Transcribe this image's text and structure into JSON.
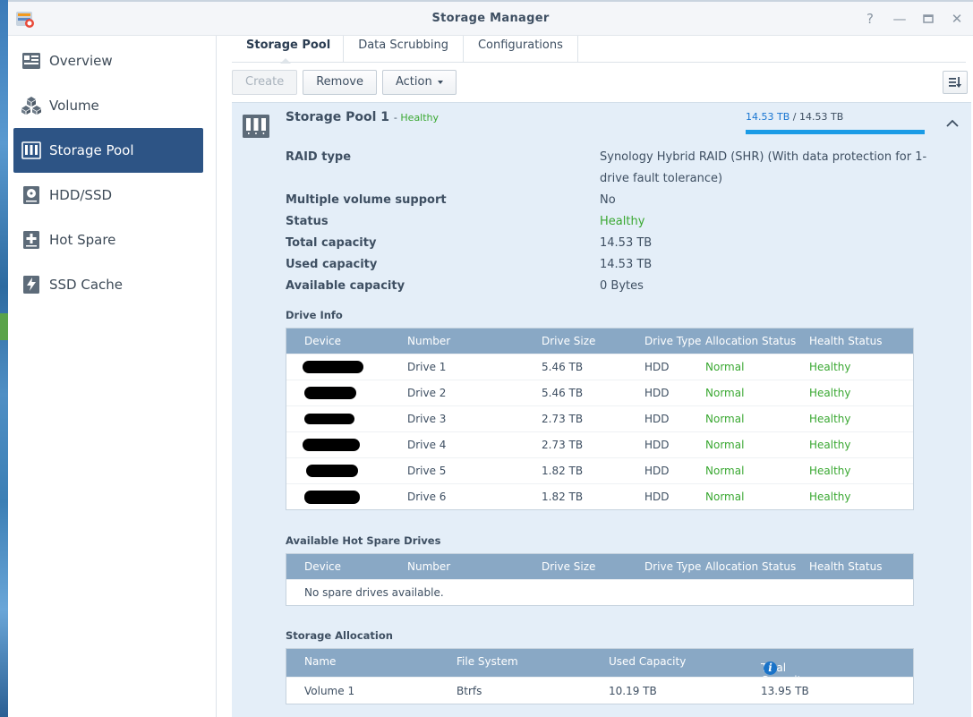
{
  "window": {
    "title": "Storage Manager"
  },
  "sidebar": {
    "items": [
      {
        "label": "Overview",
        "icon": "overview-icon"
      },
      {
        "label": "Volume",
        "icon": "volume-icon"
      },
      {
        "label": "Storage Pool",
        "icon": "storage-pool-icon",
        "active": true
      },
      {
        "label": "HDD/SSD",
        "icon": "hdd-icon"
      },
      {
        "label": "Hot Spare",
        "icon": "hot-spare-icon"
      },
      {
        "label": "SSD Cache",
        "icon": "ssd-cache-icon"
      }
    ]
  },
  "tabs": [
    "Storage Pool",
    "Data Scrubbing",
    "Configurations"
  ],
  "toolbar": {
    "create": "Create",
    "remove": "Remove",
    "action": "Action"
  },
  "pool": {
    "name": "Storage Pool 1",
    "state_sep": "-",
    "state": "Healthy",
    "used": "14.53 TB",
    "sep": "/",
    "total": "14.53 TB",
    "usage_fraction": 1.0,
    "props": {
      "raid_type_label": "RAID type",
      "raid_type_value_line1": "Synology Hybrid RAID (SHR) (With data protection for 1-",
      "raid_type_value_line2": "drive fault tolerance)",
      "multi_vol_label": "Multiple volume support",
      "multi_vol_value": "No",
      "status_label": "Status",
      "status_value": "Healthy",
      "total_cap_label": "Total capacity",
      "total_cap_value": "14.53 TB",
      "used_cap_label": "Used capacity",
      "used_cap_value": "14.53 TB",
      "avail_cap_label": "Available capacity",
      "avail_cap_value": "0 Bytes"
    }
  },
  "drive_info": {
    "title": "Drive Info",
    "columns": [
      "Device",
      "Number",
      "Drive Size",
      "Drive Type",
      "Allocation Status",
      "Health Status"
    ],
    "rows": [
      {
        "number": "Drive 1",
        "size": "5.46 TB",
        "type": "HDD",
        "alloc": "Normal",
        "health": "Healthy"
      },
      {
        "number": "Drive 2",
        "size": "5.46 TB",
        "type": "HDD",
        "alloc": "Normal",
        "health": "Healthy"
      },
      {
        "number": "Drive 3",
        "size": "2.73 TB",
        "type": "HDD",
        "alloc": "Normal",
        "health": "Healthy"
      },
      {
        "number": "Drive 4",
        "size": "2.73 TB",
        "type": "HDD",
        "alloc": "Normal",
        "health": "Healthy"
      },
      {
        "number": "Drive 5",
        "size": "1.82 TB",
        "type": "HDD",
        "alloc": "Normal",
        "health": "Healthy"
      },
      {
        "number": "Drive 6",
        "size": "1.82 TB",
        "type": "HDD",
        "alloc": "Normal",
        "health": "Healthy"
      }
    ]
  },
  "hot_spare": {
    "title": "Available Hot Spare Drives",
    "columns": [
      "Device",
      "Number",
      "Drive Size",
      "Drive Type",
      "Allocation Status",
      "Health Status"
    ],
    "empty": "No spare drives available."
  },
  "allocation": {
    "title": "Storage Allocation",
    "columns": [
      "Name",
      "File System",
      "Used Capacity",
      "Total Capacity"
    ],
    "rows": [
      {
        "name": "Volume 1",
        "fs": "Btrfs",
        "used": "10.19 TB",
        "total": "13.95 TB"
      }
    ]
  },
  "colors": {
    "active_nav": "#2d5485",
    "healthy": "#3aa832",
    "grid_header": "#89a8c5",
    "panel_bg": "#e4eef8",
    "accent": "#1a9be6"
  }
}
